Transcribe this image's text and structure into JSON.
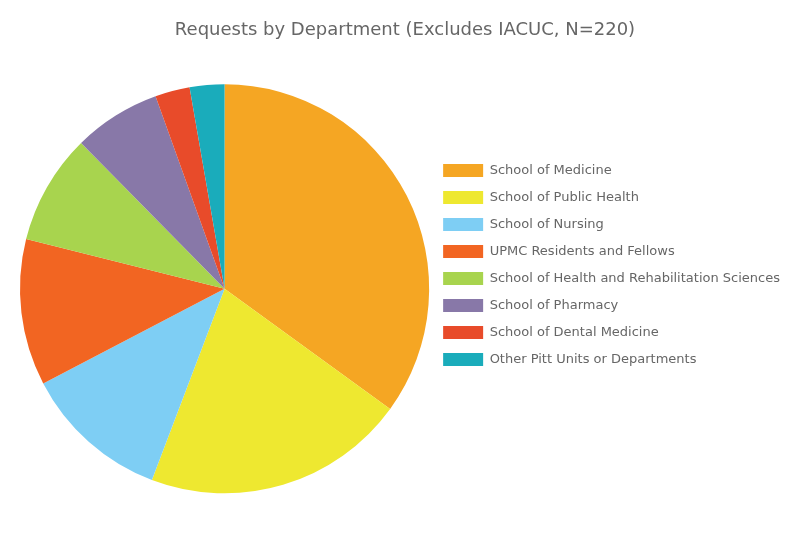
{
  "chart_data": {
    "type": "pie",
    "title": "Requests by Department (Excludes IACUC, N=220)",
    "categories": [
      "School of Medicine",
      "School of Public Health",
      "School of Nursing",
      "UPMC Residents and Fellows",
      "School of Health and Rehabilitation Sciences",
      "School of Pharmacy",
      "School of Dental Medicine",
      "Other Pitt Units or Departments"
    ],
    "values": [
      34.5,
      20.5,
      11.4,
      11.4,
      8.6,
      6.8,
      2.7,
      2.7
    ],
    "colors": [
      "#F5A623",
      "#EEE830",
      "#7ECEF4",
      "#F26522",
      "#A8D44E",
      "#8878A8",
      "#E84B2A",
      "#1AACBB"
    ],
    "legend": "right"
  }
}
